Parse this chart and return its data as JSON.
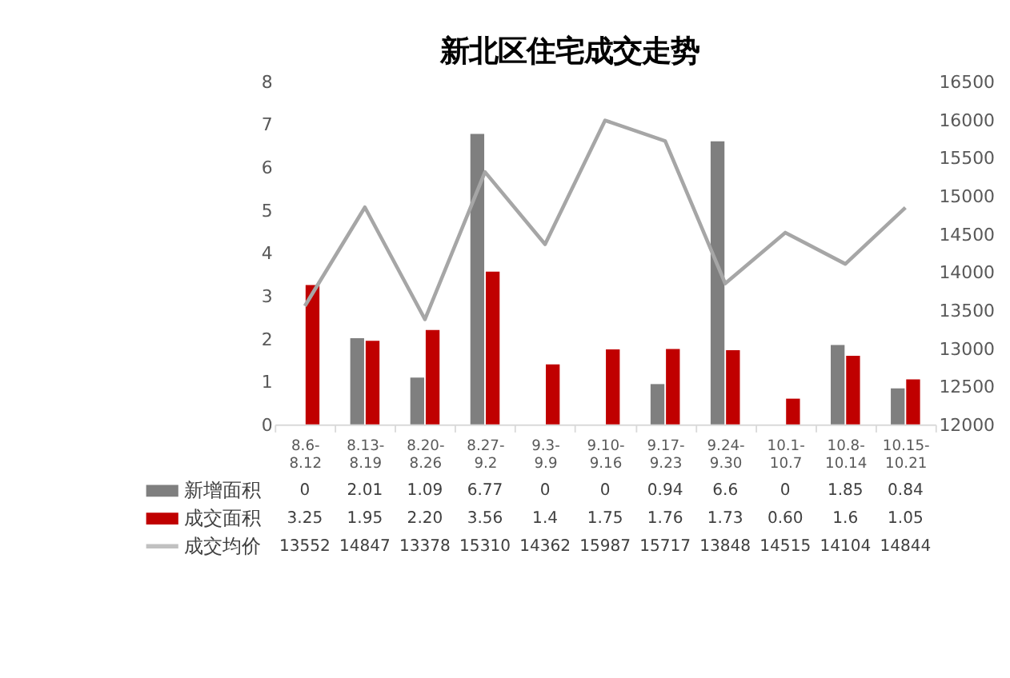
{
  "chart_data": {
    "type": "bar",
    "title": "新北区住宅成交走势",
    "categories": [
      "8.6-8.12",
      "8.13-8.19",
      "8.20-8.26",
      "8.27-9.2",
      "9.3-9.9",
      "9.10-9.16",
      "9.17-9.23",
      "9.24-9.30",
      "10.1-10.7",
      "10.8-10.14",
      "10.15-10.21"
    ],
    "series": [
      {
        "name": "新增面积",
        "color": "#7f7f7f",
        "values": [
          0,
          2.01,
          1.09,
          6.77,
          0,
          0,
          0.94,
          6.6,
          0,
          1.85,
          0.84
        ],
        "value_labels": [
          "0",
          "2.01",
          "1.09",
          "6.77",
          "0",
          "0",
          "0.94",
          "6.6",
          "0",
          "1.85",
          "0.84"
        ]
      },
      {
        "name": "成交面积",
        "color": "#c00000",
        "values": [
          3.25,
          1.95,
          2.2,
          3.56,
          1.4,
          1.75,
          1.76,
          1.73,
          0.6,
          1.6,
          1.05
        ],
        "value_labels": [
          "3.25",
          "1.95",
          "2.20",
          "3.56",
          "1.4",
          "1.75",
          "1.76",
          "1.73",
          "0.60",
          "1.6",
          "1.05"
        ]
      },
      {
        "name": "成交均价",
        "color": "#a6a6a6",
        "type": "line",
        "axis": "y2",
        "values": [
          13552,
          14847,
          13378,
          15310,
          14362,
          15987,
          15717,
          13848,
          14515,
          14104,
          14844
        ],
        "value_labels": [
          "13552",
          "14847",
          "13378",
          "15310",
          "14362",
          "15987",
          "15717",
          "13848",
          "14515",
          "14104",
          "14844"
        ]
      }
    ],
    "ylim": [
      0,
      8
    ],
    "yticks": [
      0,
      1,
      2,
      3,
      4,
      5,
      6,
      7,
      8
    ],
    "y2lim": [
      12000,
      16500
    ],
    "y2ticks": [
      12000,
      12500,
      13000,
      13500,
      14000,
      14500,
      15000,
      15500,
      16000,
      16500
    ],
    "grid": false,
    "legend": "bottom"
  }
}
